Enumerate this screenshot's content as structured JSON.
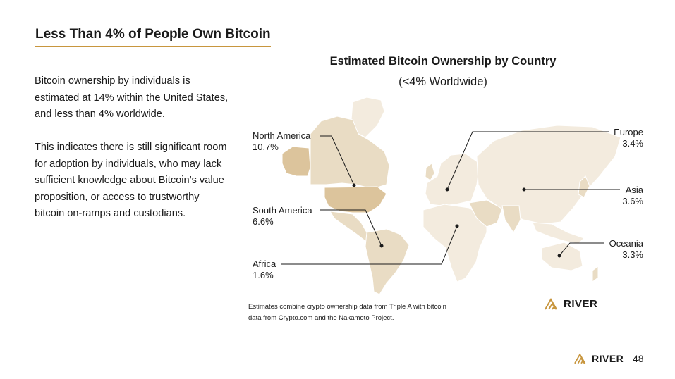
{
  "slide": {
    "title": "Less Than 4% of People Own Bitcoin",
    "paragraphs": [
      "Bitcoin ownership by individuals is estimated at 14% within the United States, and less than 4% worldwide.",
      "This indicates there is still significant room for adoption by individuals, who may lack sufficient knowledge about Bitcoin’s value proposition, or access to trustworthy bitcoin on-ramps and custodians."
    ],
    "page_number": "48"
  },
  "map": {
    "title": "Estimated Bitcoin Ownership by Country",
    "subtitle": "(<4% Worldwide)",
    "regions": [
      {
        "name": "North America",
        "value": "10.7%"
      },
      {
        "name": "South America",
        "value": "6.6%"
      },
      {
        "name": "Africa",
        "value": "1.6%"
      },
      {
        "name": "Europe",
        "value": "3.4%"
      },
      {
        "name": "Asia",
        "value": "3.6%"
      },
      {
        "name": "Oceania",
        "value": "3.3%"
      }
    ],
    "footnote": "Estimates combine crypto ownership data from Triple A with bitcoin data from Crypto.com and the Nakamoto Project.",
    "colors": {
      "light": "#f3ebde",
      "mid": "#e9dcc4",
      "dark": "#dcc49c",
      "accent": "#c8963e"
    }
  },
  "branding": {
    "logo_text": "RIVER",
    "logo_icon": "river-mountain-icon"
  }
}
